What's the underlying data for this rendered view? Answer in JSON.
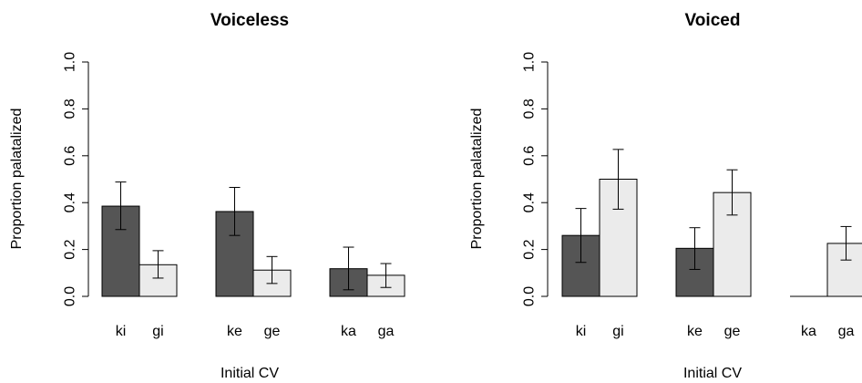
{
  "colors": {
    "dark": "#555555",
    "light": "#ebebeb",
    "stroke": "#000000"
  },
  "chart_data": [
    {
      "type": "bar",
      "title": "Voiceless",
      "xlabel": "Initial CV",
      "ylabel": "Proportion palatalized",
      "ylim": [
        0,
        1
      ],
      "yticks": [
        "0.0",
        "0.2",
        "0.4",
        "0.6",
        "0.8",
        "1.0"
      ],
      "groups": [
        {
          "bars": [
            {
              "label": "ki",
              "value": 0.385,
              "err_low": 0.285,
              "err_high": 0.488
            },
            {
              "label": "gi",
              "value": 0.135,
              "err_low": 0.078,
              "err_high": 0.195
            }
          ]
        },
        {
          "bars": [
            {
              "label": "ke",
              "value": 0.362,
              "err_low": 0.26,
              "err_high": 0.465
            },
            {
              "label": "ge",
              "value": 0.112,
              "err_low": 0.055,
              "err_high": 0.17
            }
          ]
        },
        {
          "bars": [
            {
              "label": "ka",
              "value": 0.118,
              "err_low": 0.028,
              "err_high": 0.21
            },
            {
              "label": "ga",
              "value": 0.09,
              "err_low": 0.038,
              "err_high": 0.14
            }
          ]
        }
      ]
    },
    {
      "type": "bar",
      "title": "Voiced",
      "xlabel": "Initial CV",
      "ylabel": "Proportion palatalized",
      "ylim": [
        0,
        1
      ],
      "yticks": [
        "0.0",
        "0.2",
        "0.4",
        "0.6",
        "0.8",
        "1.0"
      ],
      "groups": [
        {
          "bars": [
            {
              "label": "ki",
              "value": 0.26,
              "err_low": 0.145,
              "err_high": 0.375
            },
            {
              "label": "gi",
              "value": 0.5,
              "err_low": 0.372,
              "err_high": 0.627
            }
          ]
        },
        {
          "bars": [
            {
              "label": "ke",
              "value": 0.205,
              "err_low": 0.115,
              "err_high": 0.293
            },
            {
              "label": "ge",
              "value": 0.443,
              "err_low": 0.347,
              "err_high": 0.54
            }
          ]
        },
        {
          "bars": [
            {
              "label": "ka",
              "value": 0.0,
              "err_low": null,
              "err_high": null
            },
            {
              "label": "ga",
              "value": 0.226,
              "err_low": 0.155,
              "err_high": 0.298
            }
          ]
        }
      ]
    }
  ]
}
